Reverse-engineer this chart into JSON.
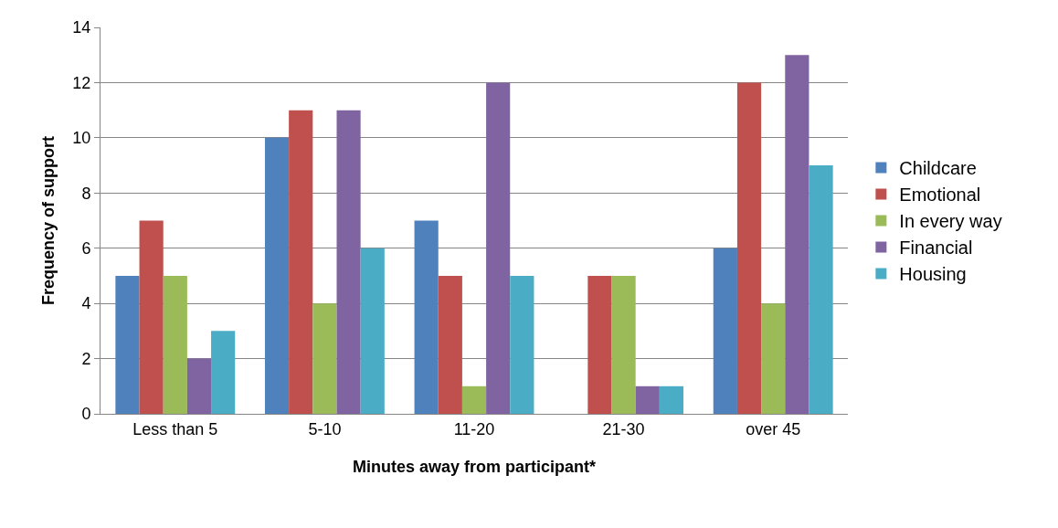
{
  "chart_data": {
    "type": "bar",
    "xlabel": "Minutes away from participant*",
    "ylabel": "Frequency of support",
    "categories": [
      "Less than 5",
      "5-10",
      "11-20",
      "21-30",
      "over 45"
    ],
    "series": [
      {
        "name": "Childcare",
        "color": "#4f81bd",
        "values": [
          5,
          10,
          7,
          0,
          6
        ]
      },
      {
        "name": "Emotional",
        "color": "#c0504d",
        "values": [
          7,
          11,
          5,
          5,
          12
        ]
      },
      {
        "name": "In every way",
        "color": "#9bbb59",
        "values": [
          5,
          4,
          1,
          5,
          4
        ]
      },
      {
        "name": "Financial",
        "color": "#8064a2",
        "values": [
          2,
          11,
          12,
          1,
          13
        ]
      },
      {
        "name": "Housing",
        "color": "#4bacc6",
        "values": [
          3,
          6,
          5,
          1,
          9
        ]
      }
    ],
    "ylim": [
      0,
      14
    ],
    "yticks": [
      0,
      2,
      4,
      6,
      8,
      10,
      12,
      14
    ],
    "grid": "y",
    "legend": "right"
  }
}
